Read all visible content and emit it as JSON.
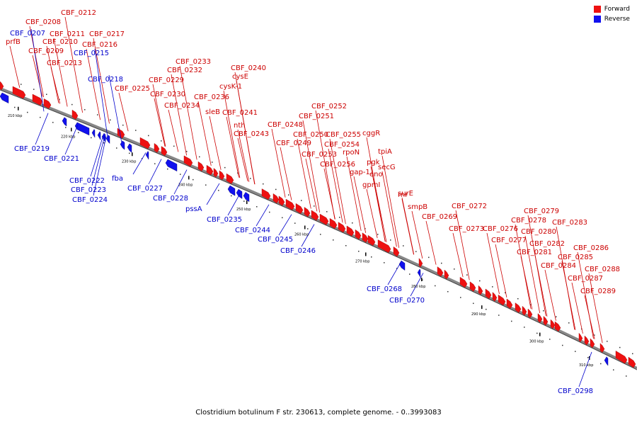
{
  "legend": {
    "forward_label": "Forward",
    "reverse_label": "Reverse",
    "forward_color": "#ee1111",
    "reverse_color": "#1111ee"
  },
  "caption": "Clostridium botulinum F str. 230613, complete genome. - 0..3993083",
  "ticks": [
    "210 kbp",
    "220 kbp",
    "230 kbp",
    "240 kbp",
    "250 kbp",
    "260 kbp",
    "270 kbp",
    "280 kbp",
    "290 kbp",
    "300 kbp",
    "310 kbp"
  ],
  "forward_labels": [
    "CBF_0212",
    "CBF_0208",
    "CBF_0211",
    "CBF_0217",
    "CBF_0210",
    "CBF_0216",
    "prfB",
    "CBF_0209",
    "CBF_0213",
    "CBF_0225",
    "CBF_0233",
    "CBF_0232",
    "CBF_0229",
    "CBF_0230",
    "CBF_0234",
    "CBF_0236",
    "CBF_0240",
    "cysE",
    "cysK-1",
    "sleB",
    "CBF_0241",
    "nth",
    "CBF_0243",
    "CBF_0252",
    "CBF_0251",
    "CBF_0248",
    "CBF_0250",
    "CBF_0249",
    "CBF_0255",
    "cggR",
    "CBF_0254",
    "CBF_0253",
    "rpoN",
    "CBF_0256",
    "tpiA",
    "pgk",
    "gap-1",
    "secG",
    "eno",
    "gpmI",
    "surE",
    "rnr",
    "smpB",
    "CBF_0269",
    "CBF_0272",
    "CBF_0273",
    "CBF_0279",
    "CBF_0278",
    "CBF_0276",
    "CBF_0283",
    "CBF_0280",
    "CBF_0277",
    "CBF_0282",
    "CBF_0281",
    "CBF_0286",
    "CBF_0285",
    "CBF_0284",
    "CBF_0288",
    "CBF_0287",
    "CBF_0289"
  ],
  "reverse_labels": [
    "CBF_0207",
    "CBF_0215",
    "CBF_0218",
    "CBF_0219",
    "CBF_0221",
    "fba",
    "CBF_0222",
    "CBF_0223",
    "CBF_0224",
    "CBF_0227",
    "CBF_0228",
    "pssA",
    "CBF_0235",
    "CBF_0244",
    "CBF_0245",
    "CBF_0246",
    "CBF_0268",
    "CBF_0270",
    "CBF_0298"
  ]
}
